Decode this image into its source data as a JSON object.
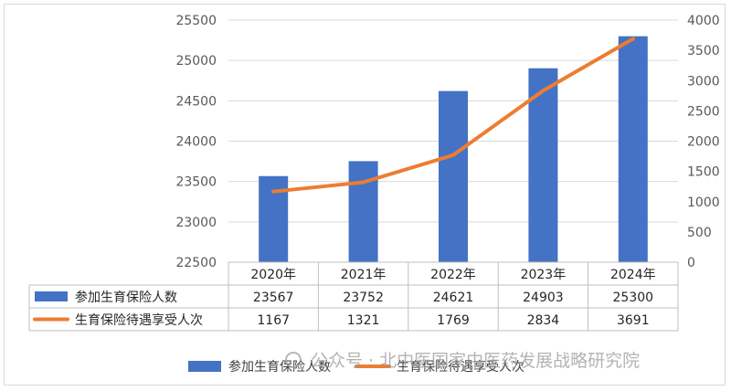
{
  "chart_data": {
    "type": "bar",
    "categories": [
      "2020年",
      "2021年",
      "2022年",
      "2023年",
      "2024年"
    ],
    "series": [
      {
        "name": "参加生育保险人数",
        "kind": "bar",
        "axis": "left",
        "color": "#4472c4",
        "values": [
          23567,
          23752,
          24621,
          24903,
          25300
        ]
      },
      {
        "name": "生育保险待遇享受人次",
        "kind": "line",
        "axis": "right",
        "color": "#ed7d31",
        "values": [
          1167,
          1321,
          1769,
          2834,
          3691
        ]
      }
    ],
    "y_left": {
      "min": 22500,
      "max": 25500,
      "step": 500,
      "ticks": [
        "22500",
        "23000",
        "23500",
        "24000",
        "24500",
        "25000",
        "25500"
      ]
    },
    "y_right": {
      "min": 0,
      "max": 4000,
      "step": 500,
      "ticks": [
        "0",
        "500",
        "1000",
        "1500",
        "2000",
        "2500",
        "3000",
        "3500",
        "4000"
      ]
    },
    "grid": true,
    "legend_position": "bottom",
    "data_table": true,
    "title": "",
    "xlabel": "",
    "ylabel": ""
  },
  "watermark": "公众号 · 北中医国家中医药发展战略研究院"
}
